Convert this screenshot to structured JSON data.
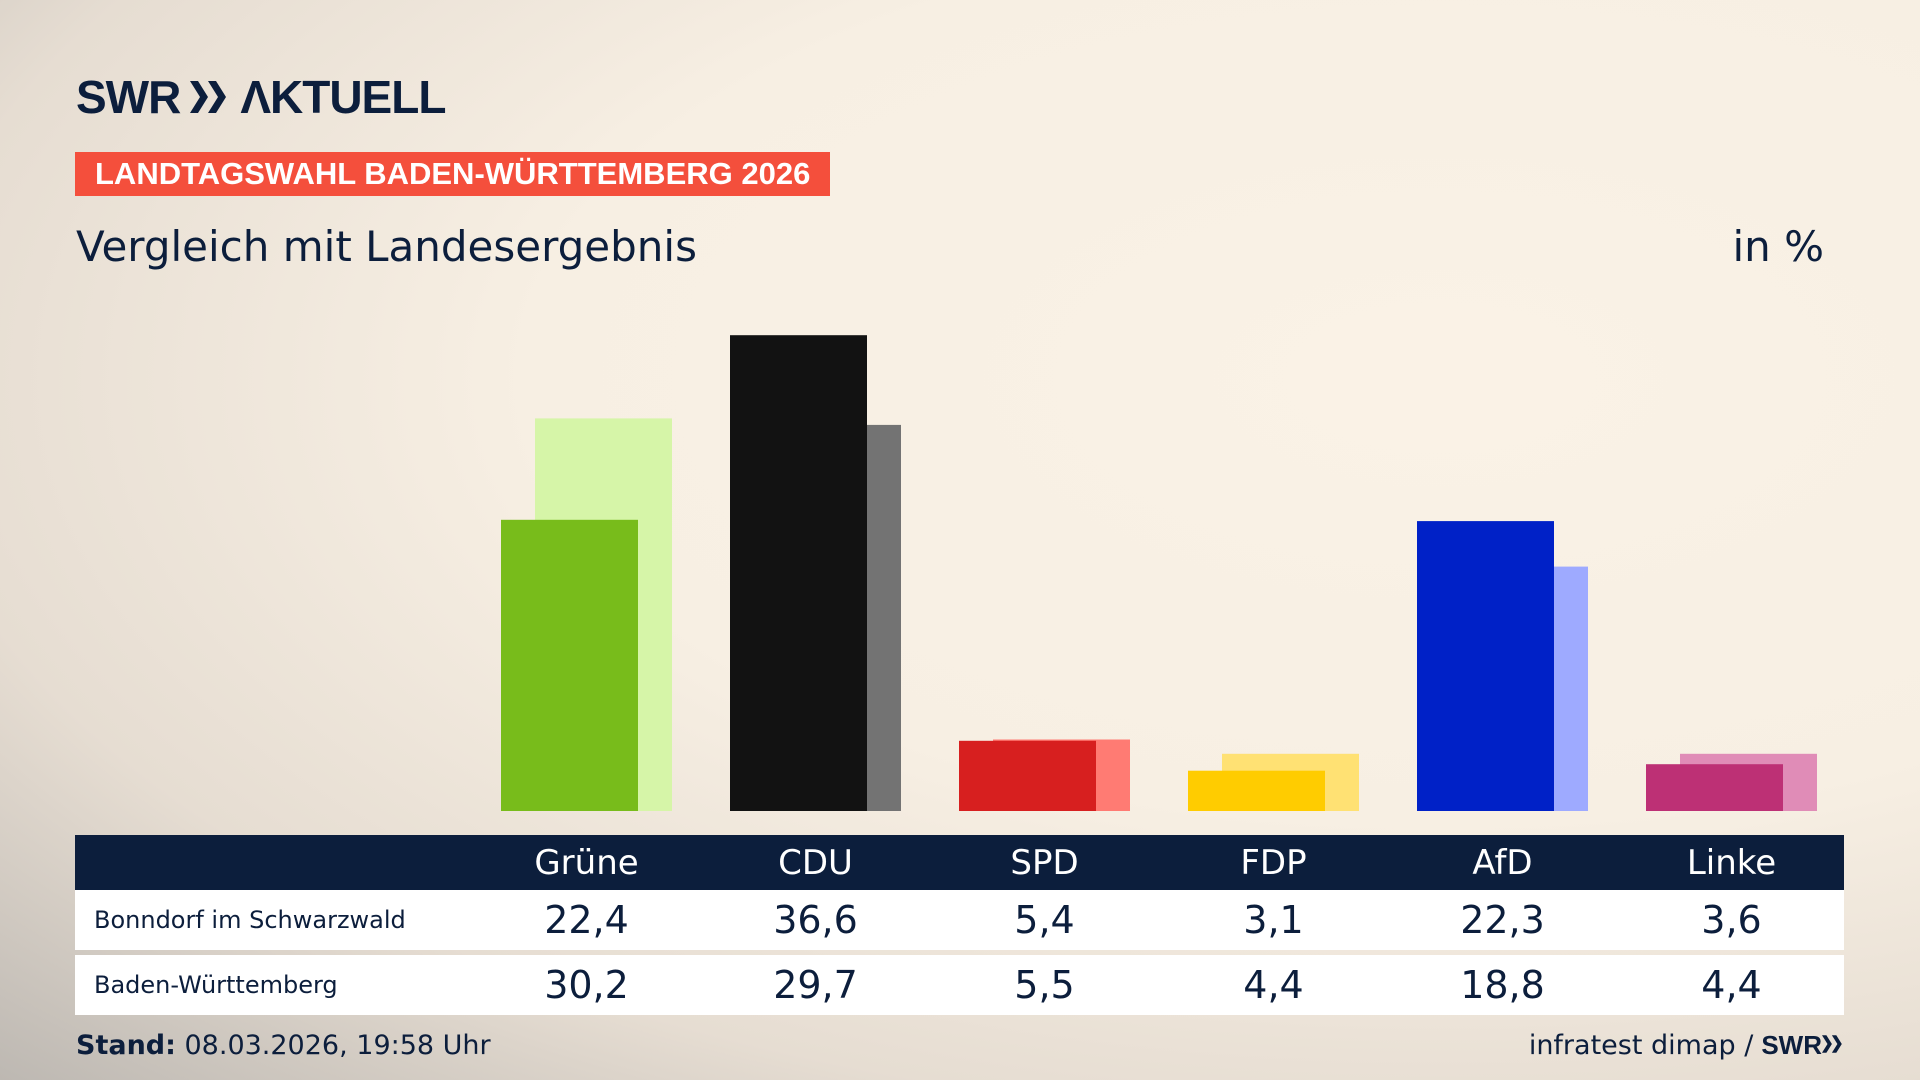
{
  "header": {
    "logo": "SWR AKTUELL",
    "badge": "LANDTAGSWAHL BADEN-WÜRTTEMBERG 2026",
    "subtitle": "Vergleich mit Landesergebnis",
    "unit": "in %"
  },
  "chart_data": {
    "type": "bar",
    "categories": [
      "Grüne",
      "CDU",
      "SPD",
      "FDP",
      "AfD",
      "Linke"
    ],
    "series": [
      {
        "name": "Bonndorf im Schwarzwald",
        "values": [
          22.4,
          36.6,
          5.4,
          3.1,
          22.3,
          3.6
        ],
        "colors": [
          "#78bc1b",
          "#121212",
          "#d71f1f",
          "#ffcc00",
          "#0021c7",
          "#bd3075"
        ]
      },
      {
        "name": "Baden-Württemberg",
        "values": [
          30.2,
          29.7,
          5.5,
          4.4,
          18.8,
          4.4
        ],
        "colors": [
          "#d6f5a8",
          "#737373",
          "#ff7b73",
          "#ffe173",
          "#9eaaff",
          "#e08cb7"
        ]
      }
    ],
    "ylim": [
      0,
      40
    ],
    "grid": false
  },
  "table": {
    "rows": [
      {
        "label": "Bonndorf im Schwarzwald",
        "values": [
          "22,4",
          "36,6",
          "5,4",
          "3,1",
          "22,3",
          "3,6"
        ]
      },
      {
        "label": "Baden-Württemberg",
        "values": [
          "30,2",
          "29,7",
          "5,5",
          "4,4",
          "18,8",
          "4,4"
        ]
      }
    ]
  },
  "footer": {
    "stand_label": "Stand:",
    "stand_value": " 08.03.2026, 19:58 Uhr",
    "source": "infratest dimap /",
    "source_logo": "SWR"
  }
}
